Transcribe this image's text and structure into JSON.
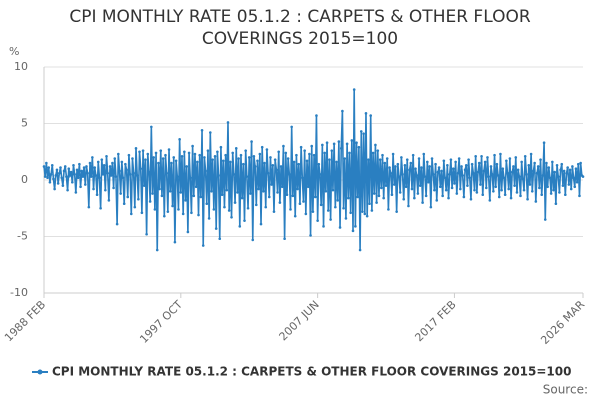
{
  "chart_data": {
    "type": "line",
    "title": "CPI MONTHLY RATE 05.1.2 : CARPETS & OTHER FLOOR COVERINGS 2015=100",
    "y_label": "%",
    "source": "Source:",
    "ylim": [
      -10,
      10
    ],
    "yticks": [
      -10,
      -5,
      0,
      5,
      10
    ],
    "grid": true,
    "categories": [
      "1988 FEB",
      null,
      null,
      null,
      null,
      null,
      null,
      null,
      null,
      null,
      null,
      null,
      null,
      null,
      null,
      null,
      null,
      null,
      null,
      null,
      null,
      null,
      null,
      null,
      null,
      null,
      null,
      null,
      null,
      null,
      null,
      null,
      null,
      null,
      null,
      null,
      null,
      null,
      null,
      null,
      null,
      null,
      null,
      null,
      null,
      null,
      null,
      null,
      null,
      null,
      null,
      null,
      null,
      null,
      null,
      null,
      null,
      null,
      null,
      null,
      null,
      null,
      null,
      null,
      null,
      null,
      null,
      null,
      null,
      null,
      null,
      null,
      null,
      null,
      null,
      null,
      null,
      null,
      null,
      null,
      null,
      null,
      null,
      null,
      null,
      null,
      null,
      null,
      null,
      null,
      null,
      null,
      null,
      null,
      null,
      null,
      null,
      null,
      null,
      null,
      null,
      null,
      null,
      null,
      null,
      null,
      null,
      null,
      null,
      null,
      null,
      null,
      null,
      null,
      null,
      null,
      "1997 OCT",
      null,
      null,
      null,
      null,
      null,
      null,
      null,
      null,
      null,
      null,
      null,
      null,
      null,
      null,
      null,
      null,
      null,
      null,
      null,
      null,
      null,
      null,
      null,
      null,
      null,
      null,
      null,
      null,
      null,
      null,
      null,
      null,
      null,
      null,
      null,
      null,
      null,
      null,
      null,
      null,
      null,
      null,
      null,
      null,
      null,
      null,
      null,
      null,
      null,
      null,
      null,
      null,
      null,
      null,
      null,
      null,
      null,
      null,
      null,
      null,
      null,
      null,
      null,
      null,
      null,
      null,
      null,
      null,
      null,
      null,
      null,
      null,
      null,
      null,
      null,
      null,
      null,
      null,
      null,
      null,
      null,
      null,
      null,
      null,
      null,
      null,
      null,
      null,
      null,
      null,
      null,
      null,
      null,
      null,
      null,
      null,
      null,
      null,
      null,
      null,
      null,
      null,
      null,
      null,
      null,
      null,
      null,
      null,
      null,
      null,
      null,
      null,
      null,
      null,
      null,
      "2007 JUN",
      null,
      null,
      null,
      null,
      null,
      null,
      null,
      null,
      null,
      null,
      null,
      null,
      null,
      null,
      null,
      null,
      null,
      null,
      null,
      null,
      null,
      null,
      null,
      null,
      null,
      null,
      null,
      null,
      null,
      null,
      null,
      null,
      null,
      null,
      null,
      null,
      null,
      null,
      null,
      null,
      null,
      null,
      null,
      null,
      null,
      null,
      null,
      null,
      null,
      null,
      null,
      null,
      null,
      null,
      null,
      null,
      null,
      null,
      null,
      null,
      null,
      null,
      null,
      null,
      null,
      null,
      null,
      null,
      null,
      null,
      null,
      null,
      null,
      null,
      null,
      null,
      null,
      null,
      null,
      null,
      null,
      null,
      null,
      null,
      null,
      null,
      null,
      null,
      null,
      null,
      null,
      null,
      null,
      null,
      null,
      null,
      null,
      null,
      null,
      null,
      null,
      null,
      null,
      null,
      null,
      null,
      null,
      null,
      null,
      null,
      null,
      null,
      null,
      null,
      null,
      "2017 FEB",
      null,
      null,
      null,
      null,
      null,
      null,
      null,
      null,
      null,
      null,
      null,
      null,
      null,
      null,
      null,
      null,
      null,
      null,
      null,
      null,
      null,
      null,
      null,
      null,
      null,
      null,
      null,
      null,
      null,
      null,
      null,
      null,
      null,
      null,
      null,
      null,
      null,
      null,
      null,
      null,
      null,
      null,
      null,
      null,
      null,
      null,
      null,
      null,
      null,
      null,
      null,
      null,
      null,
      null,
      null,
      null,
      null,
      null,
      null,
      null,
      null,
      null,
      null,
      null,
      null,
      null,
      null,
      null,
      null,
      null,
      null,
      null,
      null,
      null,
      null,
      null,
      null,
      null,
      null,
      null,
      null,
      null,
      null,
      null,
      null,
      null,
      null,
      null,
      null,
      null,
      null,
      null,
      null,
      null,
      null,
      null,
      null,
      null,
      null,
      null,
      null,
      null,
      null,
      null,
      null,
      null,
      null,
      null,
      "2026 MAR"
    ],
    "series": [
      {
        "name": "CPI MONTHLY RATE 05.1.2 : CARPETS & OTHER FLOOR COVERINGS 2015=100",
        "color": "#2a7fc1",
        "values": [
          1.2,
          0.3,
          1.5,
          0.2,
          1.1,
          -0.2,
          0.5,
          1.3,
          0.1,
          -0.8,
          0.4,
          0.9,
          -0.3,
          0.6,
          1.1,
          0.2,
          -0.5,
          0.8,
          1.2,
          0.3,
          -0.9,
          1.0,
          0.4,
          0.7,
          -0.2,
          1.3,
          0.5,
          -1.1,
          0.9,
          0.2,
          1.4,
          -0.6,
          0.8,
          0.3,
          1.1,
          -0.4,
          1.2,
          0.6,
          -2.4,
          1.5,
          0.3,
          2.0,
          -0.8,
          1.1,
          0.4,
          -1.3,
          1.6,
          0.2,
          -2.5,
          1.8,
          0.5,
          1.3,
          -0.9,
          2.1,
          0.6,
          -1.8,
          1.2,
          0.4,
          1.5,
          -0.7,
          1.9,
          0.3,
          -3.9,
          2.3,
          0.8,
          -1.2,
          1.6,
          0.2,
          -2.1,
          1.4,
          0.9,
          -1.5,
          2.2,
          0.5,
          -3.0,
          1.9,
          0.6,
          -2.4,
          2.8,
          0.4,
          -1.7,
          2.5,
          1.0,
          -2.9,
          2.6,
          -0.5,
          1.8,
          -4.8,
          2.3,
          0.7,
          -1.9,
          4.7,
          -1.2,
          2.0,
          -2.6,
          2.4,
          -6.2,
          1.5,
          -0.8,
          2.6,
          -1.4,
          1.9,
          -3.2,
          2.2,
          0.6,
          -2.8,
          2.7,
          -1.0,
          1.5,
          -2.3,
          2.0,
          -5.5,
          1.7,
          0.3,
          -2.6,
          3.6,
          -1.1,
          2.1,
          -3.0,
          2.5,
          -1.8,
          1.2,
          -4.6,
          2.4,
          0.2,
          -2.9,
          3.0,
          -1.4,
          2.3,
          -0.6,
          1.6,
          -3.1,
          2.2,
          -1.5,
          4.4,
          -5.8,
          2.0,
          0.8,
          -2.1,
          2.6,
          -3.4,
          4.2,
          -1.0,
          1.8,
          -2.6,
          2.1,
          -4.3,
          2.5,
          0.4,
          -5.2,
          2.9,
          -1.3,
          1.7,
          -2.4,
          2.2,
          -0.9,
          5.1,
          -2.7,
          1.6,
          -3.3,
          2.4,
          0.5,
          -2.0,
          2.8,
          -1.1,
          1.9,
          -4.1,
          2.2,
          -1.6,
          1.4,
          -3.6,
          2.6,
          0.3,
          -2.5,
          2.0,
          -1.2,
          3.4,
          -5.3,
          2.1,
          1.2,
          -2.2,
          1.7,
          -0.8,
          2.3,
          -3.9,
          2.9,
          -1.0,
          1.5,
          -2.4,
          2.7,
          0.6,
          -1.5,
          2.0,
          -0.4,
          1.3,
          -2.8,
          1.8,
          0.9,
          -1.1,
          2.5,
          -2.0,
          1.2,
          -0.6,
          3.0,
          -5.2,
          2.4,
          -1.3,
          1.9,
          0.5,
          -2.6,
          4.7,
          -1.4,
          1.6,
          -3.2,
          2.2,
          -0.8,
          1.4,
          -2.1,
          2.9,
          0.2,
          -1.9,
          2.6,
          -3.0,
          1.7,
          -0.6,
          2.3,
          -4.9,
          3.0,
          -2.8,
          2.2,
          -1.5,
          5.7,
          -3.6,
          1.4,
          0.5,
          -2.2,
          3.1,
          -4.1,
          2.4,
          -1.0,
          3.3,
          -2.7,
          1.8,
          -3.5,
          2.6,
          -0.9,
          3.2,
          -2.4,
          1.6,
          -1.8,
          3.4,
          -4.2,
          2.8,
          6.1,
          -2.5,
          1.9,
          -3.4,
          3.2,
          -1.6,
          2.4,
          -2.9,
          3.5,
          -4.5,
          8.0,
          -4.1,
          3.3,
          -1.5,
          2.9,
          -6.2,
          4.3,
          -2.8,
          4.1,
          -3.0,
          5.9,
          -3.2,
          1.8,
          -2.1,
          5.7,
          -2.7,
          2.4,
          -1.2,
          3.1,
          -2.0,
          2.6,
          -1.4,
          1.8,
          -0.7,
          2.2,
          -1.6,
          1.5,
          -0.5,
          1.9,
          -2.6,
          1.1,
          0.6,
          -1.3,
          2.3,
          -0.4,
          1.2,
          -2.8,
          1.4,
          0.3,
          -1.1,
          2.0,
          0.5,
          -1.7,
          1.3,
          -0.6,
          1.8,
          -2.3,
          0.9,
          1.5,
          -0.8,
          2.2,
          -1.6,
          1.0,
          0.4,
          -1.2,
          1.9,
          -0.5,
          1.1,
          -2.0,
          2.3,
          0.3,
          -1.4,
          1.6,
          -0.2,
          1.2,
          -2.4,
          1.9,
          0.5,
          -0.9,
          1.4,
          -1.8,
          0.7,
          1.1,
          -0.6,
          0.8,
          -1.4,
          1.7,
          0.2,
          -0.9,
          1.3,
          -1.6,
          0.5,
          1.8,
          -0.7,
          1.0,
          -0.3,
          1.6,
          -1.2,
          0.6,
          1.9,
          -0.8,
          1.2,
          0.4,
          -1.5,
          0.9,
          1.3,
          -0.5,
          1.8,
          0.2,
          -1.7,
          1.4,
          0.6,
          -0.9,
          2.1,
          -1.1,
          0.7,
          1.5,
          -0.4,
          2.1,
          -1.3,
          0.8,
          1.6,
          -0.7,
          2.0,
          0.3,
          -1.8,
          1.2,
          0.5,
          -1.0,
          2.2,
          -0.6,
          1.4,
          0.4,
          -1.5,
          2.3,
          -0.9,
          1.0,
          0.2,
          -1.3,
          1.7,
          0.6,
          -0.8,
          1.9,
          -1.6,
          0.7,
          1.2,
          -0.5,
          2.0,
          -1.1,
          0.9,
          0.3,
          -1.4,
          1.6,
          0.1,
          -0.9,
          2.1,
          0.5,
          -1.7,
          1.3,
          -0.4,
          2.3,
          -1.0,
          0.8,
          1.5,
          -1.9,
          0.6,
          1.2,
          -0.7,
          1.8,
          -1.3,
          0.4,
          3.3,
          -3.5,
          1.5,
          -0.6,
          1.1,
          0.2,
          -1.2,
          1.6,
          -0.9,
          0.7,
          -2.1,
          1.3,
          0.3,
          -1.1,
          0.9,
          1.4,
          -0.5,
          0.8,
          -1.3,
          0.6,
          1.1,
          -0.4,
          0.9,
          -0.8,
          1.2,
          0.2,
          -0.6,
          1.0,
          -0.2,
          1.4,
          -1.4,
          1.5,
          0.4,
          0.3
        ]
      }
    ]
  }
}
